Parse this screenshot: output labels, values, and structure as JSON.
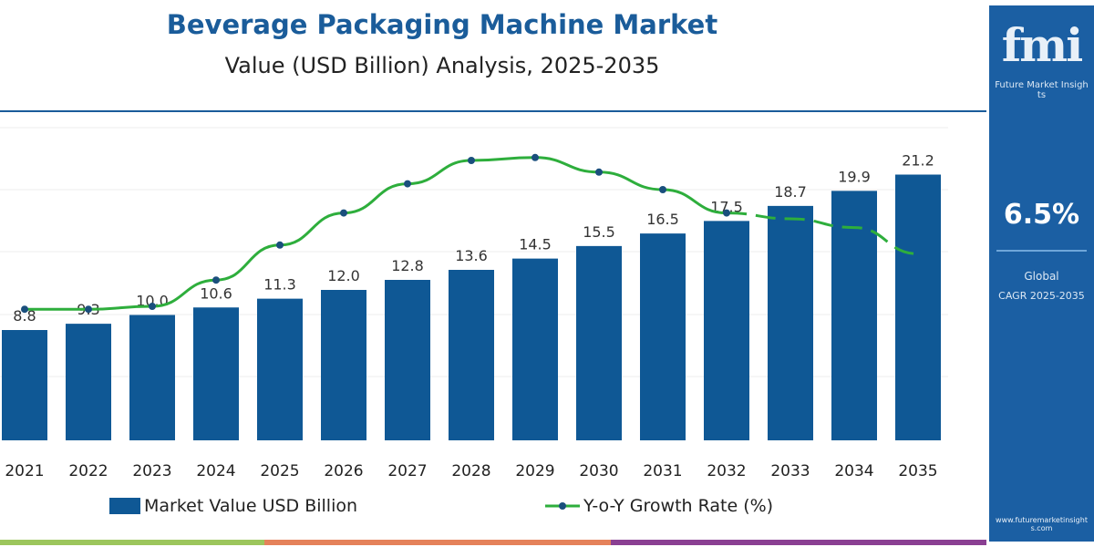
{
  "header": {
    "title": "Beverage Packaging Machine Market",
    "subtitle": "Value (USD Billion) Analysis, 2025-2035"
  },
  "side_panel": {
    "logo_text": "fmi",
    "brand": "Future Market Insights",
    "cagr_value": "6.5%",
    "label_line1": "Global",
    "label_line2": "CAGR 2025-2035",
    "website": "www.futuremarketinsights.com",
    "bg_color": "#1b5fa3"
  },
  "chart_data": {
    "type": "bar",
    "title": "Beverage Packaging Machine Market",
    "subtitle": "Value (USD Billion) Analysis, 2025-2035",
    "categories": [
      "2021",
      "2022",
      "2023",
      "2024",
      "2025",
      "2026",
      "2027",
      "2028",
      "2029",
      "2030",
      "2031",
      "2032",
      "2033",
      "2034",
      "2035"
    ],
    "series": [
      {
        "name": "Market Value USD Billion",
        "type": "bar",
        "color": "#0f5895",
        "values": [
          8.8,
          9.3,
          10.0,
          10.6,
          11.3,
          12.0,
          12.8,
          13.6,
          14.5,
          15.5,
          16.5,
          17.5,
          18.7,
          19.9,
          21.2
        ]
      },
      {
        "name": "Y-o-Y Growth Rate (%)",
        "type": "line",
        "color": "#2eae3c",
        "values_estimated": [
          4.4,
          4.4,
          4.5,
          5.4,
          6.6,
          7.7,
          8.7,
          9.5,
          9.6,
          9.1,
          8.5,
          7.7,
          7.5,
          7.2,
          6.3
        ],
        "dashed_from": "2032"
      }
    ],
    "legend_placement": "bottom",
    "grid": true,
    "ylim": [
      0,
      25
    ]
  },
  "strip_colors": [
    "#9cc65c",
    "#e5825a",
    "#8a3f92"
  ]
}
